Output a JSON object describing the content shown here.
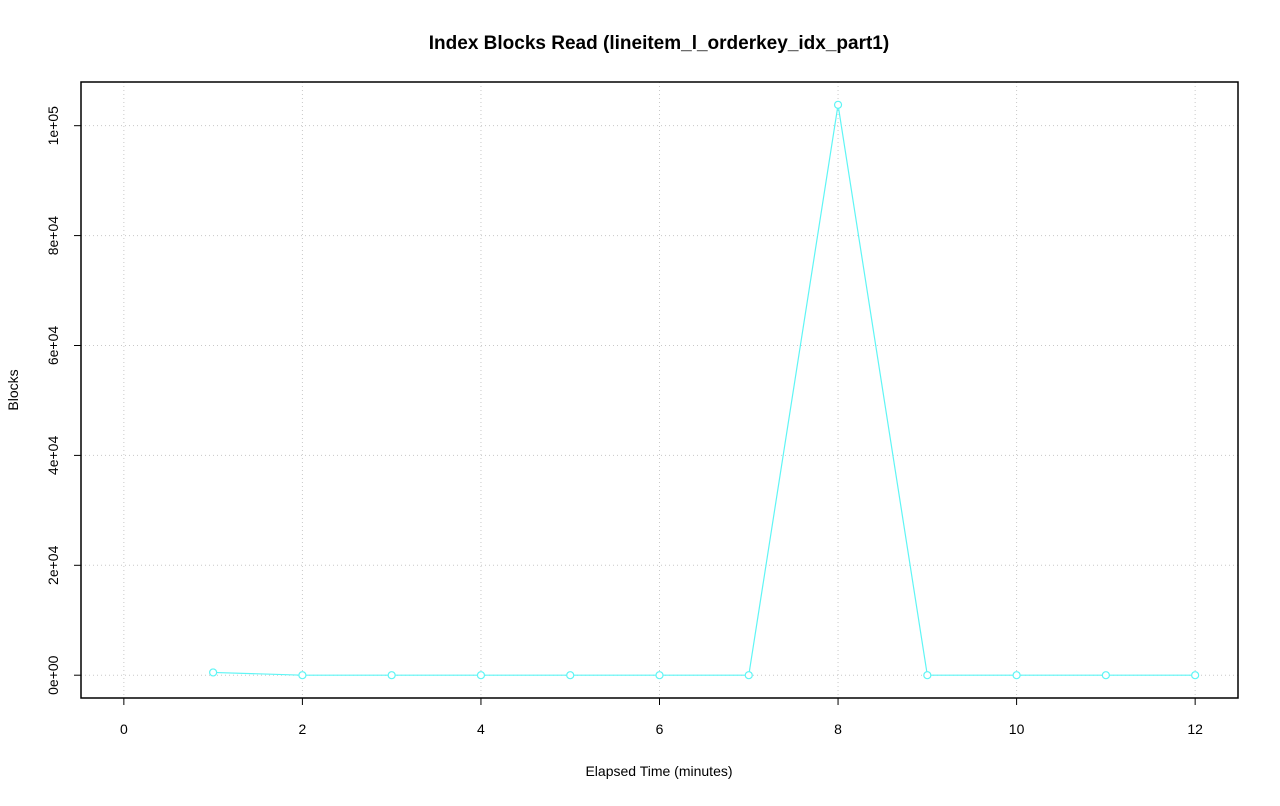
{
  "chart_data": {
    "type": "line",
    "title": "Index Blocks Read (lineitem_l_orderkey_idx_part1)",
    "xlabel": "Elapsed Time (minutes)",
    "ylabel": "Blocks",
    "x": [
      1,
      2,
      3,
      4,
      5,
      6,
      7,
      8,
      9,
      10,
      11,
      12
    ],
    "series": [
      {
        "name": "Blocks",
        "color": "#5ff5f5",
        "values": [
          500,
          0,
          0,
          0,
          0,
          0,
          0,
          103800,
          0,
          0,
          0,
          0
        ]
      }
    ],
    "xlim": [
      -0.48,
      12.48
    ],
    "xticks": [
      0,
      2,
      4,
      6,
      8,
      10,
      12
    ],
    "ylim": [
      -4150,
      107950
    ],
    "yticks": [
      {
        "value": 0,
        "label": "0e+00"
      },
      {
        "value": 20000,
        "label": "2e+04"
      },
      {
        "value": 40000,
        "label": "4e+04"
      },
      {
        "value": 60000,
        "label": "6e+04"
      },
      {
        "value": 80000,
        "label": "8e+04"
      },
      {
        "value": 100000,
        "label": "1e+05"
      }
    ],
    "grid": true
  }
}
